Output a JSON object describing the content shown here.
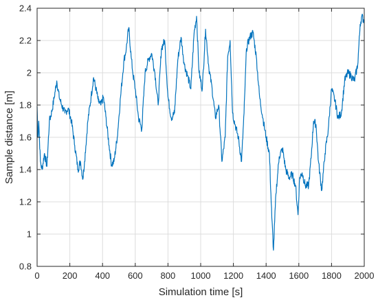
{
  "chart_data": {
    "type": "line",
    "title": "",
    "xlabel": "Simulation time [s]",
    "ylabel": "Sample distance [m]",
    "xlim": [
      0,
      2000
    ],
    "ylim": [
      0.8,
      2.4
    ],
    "xticks": [
      0,
      200,
      400,
      600,
      800,
      1000,
      1200,
      1400,
      1600,
      1800,
      2000
    ],
    "yticks": [
      0.8,
      1,
      1.2,
      1.4,
      1.6,
      1.8,
      2,
      2.2,
      2.4
    ],
    "xtick_labels": [
      "0",
      "200",
      "400",
      "600",
      "800",
      "1000",
      "1200",
      "1400",
      "1600",
      "1800",
      "2000"
    ],
    "ytick_labels": [
      "0.8",
      "1",
      "1.2",
      "1.4",
      "1.6",
      "1.8",
      "2",
      "2.2",
      "2.4"
    ],
    "grid": true,
    "legend": "none",
    "line_color": "#0072BD",
    "series": [
      {
        "x": [
          0,
          5,
          10,
          20,
          30,
          45,
          60,
          75,
          90,
          105,
          120,
          135,
          150,
          170,
          190,
          210,
          230,
          250,
          265,
          280,
          290,
          310,
          330,
          345,
          360,
          375,
          390,
          405,
          420,
          440,
          455,
          470,
          490,
          510,
          530,
          545,
          560,
          575,
          585,
          600,
          620,
          640,
          660,
          680,
          700,
          720,
          740,
          760,
          780,
          800,
          820,
          840,
          860,
          880,
          900,
          920,
          940,
          960,
          975,
          990,
          1010,
          1030,
          1050,
          1070,
          1090,
          1110,
          1130,
          1150,
          1165,
          1180,
          1195,
          1210,
          1230,
          1250,
          1265,
          1280,
          1300,
          1320,
          1340,
          1360,
          1380,
          1400,
          1420,
          1435,
          1445,
          1460,
          1480,
          1500,
          1520,
          1540,
          1560,
          1580,
          1595,
          1605,
          1620,
          1640,
          1660,
          1675,
          1690,
          1705,
          1720,
          1740,
          1760,
          1780,
          1800,
          1820,
          1840,
          1860,
          1880,
          1900,
          1920,
          1940,
          1960,
          1975,
          1985,
          2000
        ],
        "y": [
          1.79,
          1.6,
          1.7,
          1.45,
          1.4,
          1.5,
          1.42,
          1.7,
          1.76,
          1.85,
          1.95,
          1.85,
          1.8,
          1.75,
          1.78,
          1.7,
          1.55,
          1.4,
          1.45,
          1.34,
          1.45,
          1.7,
          1.85,
          1.97,
          1.9,
          1.82,
          1.8,
          1.85,
          1.73,
          1.55,
          1.43,
          1.45,
          1.6,
          1.85,
          2.07,
          2.15,
          2.28,
          2.1,
          2.0,
          1.9,
          1.72,
          1.65,
          2.0,
          2.08,
          2.12,
          2.0,
          1.8,
          2.15,
          2.2,
          1.85,
          1.72,
          1.75,
          2.08,
          2.22,
          2.05,
          1.98,
          1.9,
          2.25,
          2.35,
          2.0,
          1.9,
          2.27,
          2.03,
          1.9,
          1.72,
          1.8,
          1.45,
          1.6,
          2.1,
          2.2,
          1.75,
          1.68,
          1.6,
          1.45,
          1.75,
          2.15,
          2.22,
          2.25,
          2.1,
          1.85,
          1.72,
          1.6,
          1.5,
          1.1,
          0.9,
          1.25,
          1.48,
          1.53,
          1.4,
          1.35,
          1.37,
          1.3,
          1.12,
          1.35,
          1.38,
          1.3,
          1.3,
          1.47,
          1.7,
          1.68,
          1.45,
          1.27,
          1.5,
          1.65,
          1.9,
          1.83,
          1.72,
          1.75,
          1.95,
          2.0,
          1.98,
          1.95,
          2.05,
          2.3,
          2.35,
          2.32
        ]
      }
    ]
  }
}
